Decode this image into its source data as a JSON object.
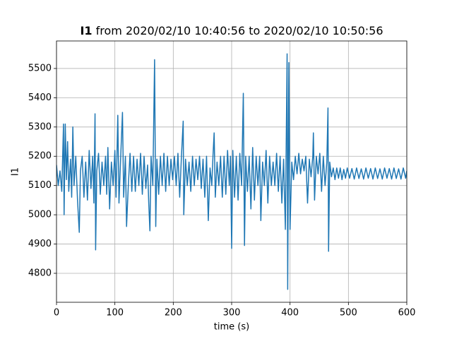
{
  "chart_data": {
    "type": "line",
    "title_parts": [
      "I1",
      "from 2020/02/10 10:40:56 to 2020/02/10 10:50:56"
    ],
    "xlabel": "time (s)",
    "ylabel": "I1",
    "x": [
      0,
      3,
      6,
      9,
      12,
      13,
      15,
      17,
      19,
      21,
      24,
      26,
      28,
      30,
      33,
      36,
      39,
      41,
      44,
      47,
      50,
      53,
      56,
      59,
      62,
      64,
      66,
      67,
      69,
      72,
      75,
      78,
      81,
      84,
      86,
      88,
      91,
      94,
      97,
      100,
      102,
      105,
      107,
      110,
      113,
      115,
      118,
      120,
      123,
      126,
      129,
      132,
      135,
      138,
      141,
      144,
      147,
      150,
      153,
      156,
      158,
      160,
      162,
      165,
      168,
      170,
      172,
      175,
      178,
      181,
      184,
      187,
      190,
      193,
      196,
      199,
      202,
      205,
      208,
      211,
      214,
      217,
      218,
      221,
      224,
      227,
      230,
      233,
      236,
      239,
      242,
      245,
      248,
      251,
      254,
      257,
      260,
      263,
      266,
      268,
      270,
      272,
      275,
      278,
      281,
      284,
      287,
      290,
      293,
      296,
      298,
      300,
      302,
      305,
      308,
      311,
      314,
      317,
      320,
      322,
      324,
      327,
      330,
      333,
      336,
      339,
      342,
      345,
      348,
      350,
      353,
      356,
      359,
      362,
      365,
      368,
      371,
      374,
      377,
      380,
      383,
      386,
      389,
      392,
      395,
      396,
      398,
      400,
      403,
      406,
      409,
      412,
      415,
      418,
      421,
      424,
      427,
      430,
      433,
      436,
      439,
      440,
      442,
      445,
      448,
      451,
      454,
      457,
      460,
      463,
      465,
      466,
      468,
      471,
      474,
      477,
      480,
      483,
      486,
      489,
      492,
      495,
      498,
      502,
      506,
      510,
      514,
      518,
      522,
      526,
      530,
      534,
      538,
      542,
      546,
      550,
      554,
      558,
      562,
      566,
      570,
      574,
      578,
      582,
      586,
      590,
      594,
      598,
      600
    ],
    "series": [
      {
        "name": "I1",
        "color": "#1f77b4",
        "values": [
          5170,
          5100,
          5150,
          5080,
          5310,
          5000,
          5310,
          5120,
          5250,
          5080,
          5190,
          5060,
          5300,
          5100,
          5200,
          5050,
          4940,
          5150,
          5200,
          5060,
          5180,
          5050,
          5220,
          5090,
          5200,
          5040,
          5345,
          4880,
          5150,
          5210,
          5070,
          5180,
          5100,
          5200,
          5070,
          5230,
          5020,
          5180,
          5100,
          5220,
          5060,
          5340,
          5040,
          5200,
          5350,
          5060,
          5200,
          4960,
          5100,
          5210,
          5080,
          5200,
          5080,
          5190,
          5100,
          5210,
          5070,
          5200,
          5090,
          5170,
          5040,
          4945,
          5200,
          5100,
          5530,
          4960,
          5190,
          5070,
          5200,
          5100,
          5210,
          5080,
          5200,
          5100,
          5190,
          5120,
          5200,
          5100,
          5210,
          5060,
          5200,
          5320,
          5000,
          5190,
          5100,
          5180,
          5080,
          5200,
          5100,
          5190,
          5120,
          5200,
          5090,
          5190,
          5060,
          5200,
          4980,
          5160,
          5100,
          5200,
          5280,
          5060,
          5180,
          5100,
          5200,
          5060,
          5200,
          5070,
          5220,
          5100,
          5200,
          4885,
          5220,
          5060,
          5200,
          5050,
          5210,
          5100,
          5415,
          4895,
          5200,
          5080,
          5200,
          5020,
          5230,
          5050,
          5200,
          5100,
          5200,
          4980,
          5180,
          5100,
          5220,
          5040,
          5200,
          5100,
          5180,
          5100,
          5210,
          5080,
          5200,
          5040,
          5190,
          4950,
          5550,
          4745,
          5520,
          4950,
          5180,
          5120,
          5200,
          5140,
          5210,
          5140,
          5190,
          5150,
          5200,
          5040,
          5190,
          5130,
          5200,
          5280,
          5050,
          5200,
          5140,
          5210,
          5080,
          5200,
          5100,
          5180,
          5365,
          4875,
          5180,
          5130,
          5160,
          5120,
          5160,
          5125,
          5160,
          5120,
          5155,
          5125,
          5160,
          5125,
          5158,
          5122,
          5160,
          5124,
          5157,
          5122,
          5160,
          5125,
          5158,
          5122,
          5160,
          5124,
          5157,
          5122,
          5160,
          5125,
          5158,
          5122,
          5160,
          5124,
          5157,
          5122,
          5160,
          5125,
          5150
        ]
      }
    ],
    "xlim": [
      0,
      600
    ],
    "xticks": [
      0,
      100,
      200,
      300,
      400,
      500,
      600
    ],
    "ylim": [
      4701,
      5594
    ],
    "yticks": [
      4800,
      4900,
      5000,
      5100,
      5200,
      5300,
      5400,
      5500
    ],
    "grid": true
  }
}
